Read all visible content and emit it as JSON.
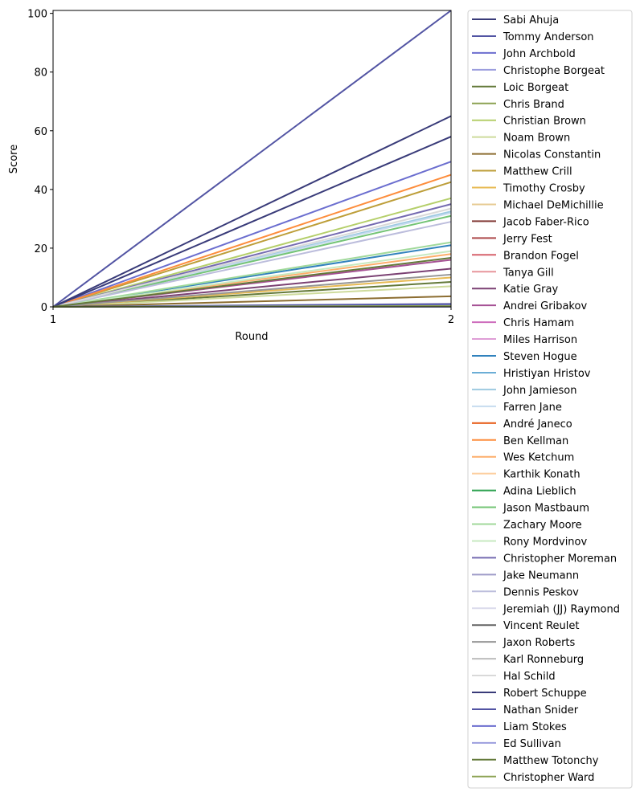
{
  "chart_data": {
    "type": "line",
    "title": "",
    "xlabel": "Round",
    "ylabel": "Score",
    "x": [
      1,
      2
    ],
    "xticks": [
      "1",
      "2"
    ],
    "yticks": [
      "0",
      "20",
      "40",
      "60",
      "80",
      "100"
    ],
    "xlim": [
      1,
      2
    ],
    "ylim": [
      0,
      101
    ],
    "grid": false,
    "legend_position": "outside-right",
    "series": [
      {
        "name": "Sabi Ahuja",
        "color": "#393b79",
        "values": [
          0,
          65
        ]
      },
      {
        "name": "Tommy Anderson",
        "color": "#5254a3",
        "values": [
          0,
          101
        ]
      },
      {
        "name": "John Archbold",
        "color": "#6b6ecf",
        "values": [
          0,
          49.5
        ]
      },
      {
        "name": "Christophe Borgeat",
        "color": "#9c9ede",
        "values": [
          0,
          0
        ]
      },
      {
        "name": "Loic Borgeat",
        "color": "#637939",
        "values": [
          0,
          8.5
        ]
      },
      {
        "name": "Chris Brand",
        "color": "#8ca252",
        "values": [
          0,
          0
        ]
      },
      {
        "name": "Christian Brown",
        "color": "#b5cf6b",
        "values": [
          0,
          37
        ]
      },
      {
        "name": "Noam Brown",
        "color": "#cedb9c",
        "values": [
          0,
          7
        ]
      },
      {
        "name": "Nicolas Constantin",
        "color": "#8c6d31",
        "values": [
          0,
          3.6
        ]
      },
      {
        "name": "Matthew Crill",
        "color": "#bd9e39",
        "values": [
          0,
          42.5
        ]
      },
      {
        "name": "Timothy Crosby",
        "color": "#e7ba52",
        "values": [
          0,
          10
        ]
      },
      {
        "name": "Michael DeMichillie",
        "color": "#e7cb94",
        "values": [
          0,
          0
        ]
      },
      {
        "name": "Jacob Faber-Rico",
        "color": "#843c39",
        "values": [
          0,
          0
        ]
      },
      {
        "name": "Jerry Fest",
        "color": "#ad494a",
        "values": [
          0,
          0
        ]
      },
      {
        "name": "Brandon Fogel",
        "color": "#d6616b",
        "values": [
          0,
          0
        ]
      },
      {
        "name": "Tanya Gill",
        "color": "#e7969c",
        "values": [
          0,
          0
        ]
      },
      {
        "name": "Katie Gray",
        "color": "#7b4173",
        "values": [
          0,
          13
        ]
      },
      {
        "name": "Andrei Gribakov",
        "color": "#a55194",
        "values": [
          0,
          16
        ]
      },
      {
        "name": "Chris Hamam",
        "color": "#ce6dbd",
        "values": [
          0,
          0
        ]
      },
      {
        "name": "Miles Harrison",
        "color": "#de9ed6",
        "values": [
          0,
          0
        ]
      },
      {
        "name": "Steven Hogue",
        "color": "#3182bd",
        "values": [
          0,
          21
        ]
      },
      {
        "name": "Hristiyan Hristov",
        "color": "#6baed6",
        "values": [
          0,
          0
        ]
      },
      {
        "name": "John Jamieson",
        "color": "#9ecae1",
        "values": [
          0,
          32.5
        ]
      },
      {
        "name": "Farren Jane",
        "color": "#c6dbef",
        "values": [
          0,
          32
        ]
      },
      {
        "name": "André Janeco",
        "color": "#e6550d",
        "values": [
          0,
          0
        ]
      },
      {
        "name": "Ben Kellman",
        "color": "#fd8d3c",
        "values": [
          0,
          45
        ]
      },
      {
        "name": "Wes Ketchum",
        "color": "#fdae6b",
        "values": [
          0,
          18
        ]
      },
      {
        "name": "Karthik Konath",
        "color": "#fdd0a2",
        "values": [
          0,
          0
        ]
      },
      {
        "name": "Adina Lieblich",
        "color": "#31a354",
        "values": [
          0,
          0
        ]
      },
      {
        "name": "Jason Mastbaum",
        "color": "#74c476",
        "values": [
          0,
          31
        ]
      },
      {
        "name": "Zachary Moore",
        "color": "#a1d99b",
        "values": [
          0,
          22
        ]
      },
      {
        "name": "Rony Mordvinov",
        "color": "#c7e9c0",
        "values": [
          0,
          19
        ]
      },
      {
        "name": "Christopher Moreman",
        "color": "#756bb1",
        "values": [
          0,
          35
        ]
      },
      {
        "name": "Jake Neumann",
        "color": "#9e9ac8",
        "values": [
          0,
          0
        ]
      },
      {
        "name": "Dennis Peskov",
        "color": "#bcbddc",
        "values": [
          0,
          29
        ]
      },
      {
        "name": "Jeremiah (JJ) Raymond",
        "color": "#dadaeb",
        "values": [
          0,
          0
        ]
      },
      {
        "name": "Vincent Reulet",
        "color": "#636363",
        "values": [
          0,
          0
        ]
      },
      {
        "name": "Jaxon Roberts",
        "color": "#969696",
        "values": [
          0,
          11
        ]
      },
      {
        "name": "Karl Ronneburg",
        "color": "#bdbdbd",
        "values": [
          0,
          0
        ]
      },
      {
        "name": "Hal Schild",
        "color": "#d9d9d9",
        "values": [
          0,
          33.5
        ]
      },
      {
        "name": "Robert Schuppe",
        "color": "#393b79",
        "values": [
          0,
          58
        ]
      },
      {
        "name": "Nathan Snider",
        "color": "#5254a3",
        "values": [
          0,
          1
        ]
      },
      {
        "name": "Liam Stokes",
        "color": "#6b6ecf",
        "values": [
          0,
          0.5
        ]
      },
      {
        "name": "Ed Sullivan",
        "color": "#9c9ede",
        "values": [
          0,
          0
        ]
      },
      {
        "name": "Matthew Totonchy",
        "color": "#637939",
        "values": [
          0,
          16.7
        ]
      },
      {
        "name": "Christopher Ward",
        "color": "#8ca252",
        "values": [
          0,
          0.3
        ]
      }
    ]
  }
}
